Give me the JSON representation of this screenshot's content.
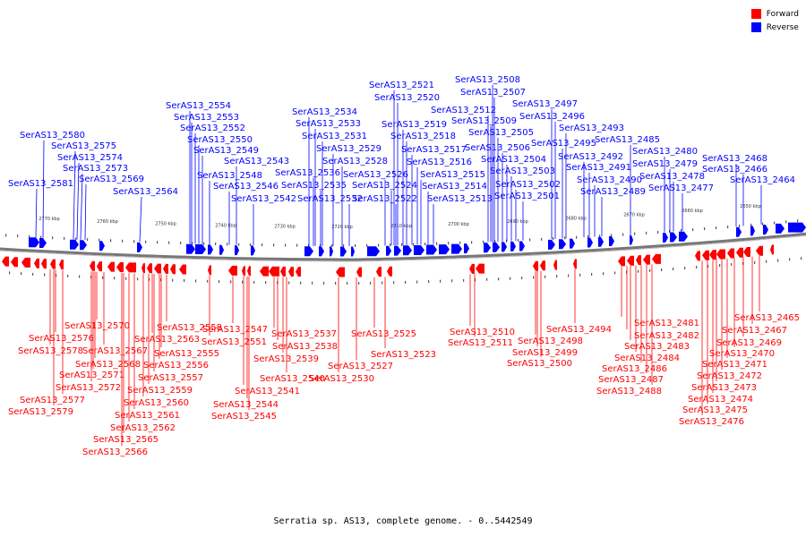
{
  "legend": [
    {
      "label": "Forward",
      "color": "#ff0000"
    },
    {
      "label": "Reverse",
      "color": "#0000ff"
    }
  ],
  "caption": "Serratia sp. AS13, complete genome. - 0..5442549",
  "scale_ticks": [
    "2770 kbp",
    "2760 kbp",
    "2750 kbp",
    "2740 kbp",
    "2730 kbp",
    "2720 kbp",
    "2710 kbp",
    "2700 kbp",
    "2690 kbp",
    "2680 kbp",
    "2670 kbp",
    "2660 kbp",
    "2650 kbp"
  ],
  "reverse_labels": [
    "SerAS13_2581",
    "SerAS13_2580",
    "SerAS13_2575",
    "SerAS13_2574",
    "SerAS13_2573",
    "SerAS13_2569",
    "SerAS13_2564",
    "SerAS13_2554",
    "SerAS13_2553",
    "SerAS13_2552",
    "SerAS13_2550",
    "SerAS13_2549",
    "SerAS13_2548",
    "SerAS13_2546",
    "SerAS13_2543",
    "SerAS13_2542",
    "SerAS13_2534",
    "SerAS13_2533",
    "SerAS13_2531",
    "SerAS13_2529",
    "SerAS13_2528",
    "SerAS13_2536",
    "SerAS13_2535",
    "SerAS13_2532",
    "SerAS13_2521",
    "SerAS13_2520",
    "SerAS13_2519",
    "SerAS13_2518",
    "SerAS13_2517",
    "SerAS13_2516",
    "SerAS13_2526",
    "SerAS13_2524",
    "SerAS13_2522",
    "SerAS13_2515",
    "SerAS13_2514",
    "SerAS13_2513",
    "SerAS13_2508",
    "SerAS13_2507",
    "SerAS13_2512",
    "SerAS13_2509",
    "SerAS13_2505",
    "SerAS13_2506",
    "SerAS13_2504",
    "SerAS13_2503",
    "SerAS13_2502",
    "SerAS13_2501",
    "SerAS13_2497",
    "SerAS13_2496",
    "SerAS13_2493",
    "SerAS13_2495",
    "SerAS13_2492",
    "SerAS13_2491",
    "SerAS13_2490",
    "SerAS13_2489",
    "SerAS13_2485",
    "SerAS13_2480",
    "SerAS13_2479",
    "SerAS13_2478",
    "SerAS13_2477",
    "SerAS13_2468",
    "SerAS13_2466",
    "SerAS13_2464"
  ],
  "forward_labels": [
    "SerAS13_2576",
    "SerAS13_2578",
    "SerAS13_2570",
    "SerAS13_2567",
    "SerAS13_2568",
    "SerAS13_2571",
    "SerAS13_2572",
    "SerAS13_2577",
    "SerAS13_2579",
    "SerAS13_2563",
    "SerAS13_2558",
    "SerAS13_2555",
    "SerAS13_2556",
    "SerAS13_2557",
    "SerAS13_2559",
    "SerAS13_2560",
    "SerAS13_2561",
    "SerAS13_2562",
    "SerAS13_2565",
    "SerAS13_2566",
    "SerAS13_2551",
    "SerAS13_2547",
    "SerAS13_2541",
    "SerAS13_2544",
    "SerAS13_2545",
    "SerAS13_2537",
    "SerAS13_2538",
    "SerAS13_2539",
    "SerAS13_2540",
    "SerAS13_2530",
    "SerAS13_2527",
    "SerAS13_2525",
    "SerAS13_2523",
    "SerAS13_2510",
    "SerAS13_2511",
    "SerAS13_2498",
    "SerAS13_2499",
    "SerAS13_2500",
    "SerAS13_2494",
    "SerAS13_2481",
    "SerAS13_2482",
    "SerAS13_2483",
    "SerAS13_2484",
    "SerAS13_2486",
    "SerAS13_2487",
    "SerAS13_2488",
    "SerAS13_2465",
    "SerAS13_2467",
    "SerAS13_2469",
    "SerAS13_2470",
    "SerAS13_2471",
    "SerAS13_2472",
    "SerAS13_2473",
    "SerAS13_2474",
    "SerAS13_2475",
    "SerAS13_2476"
  ]
}
